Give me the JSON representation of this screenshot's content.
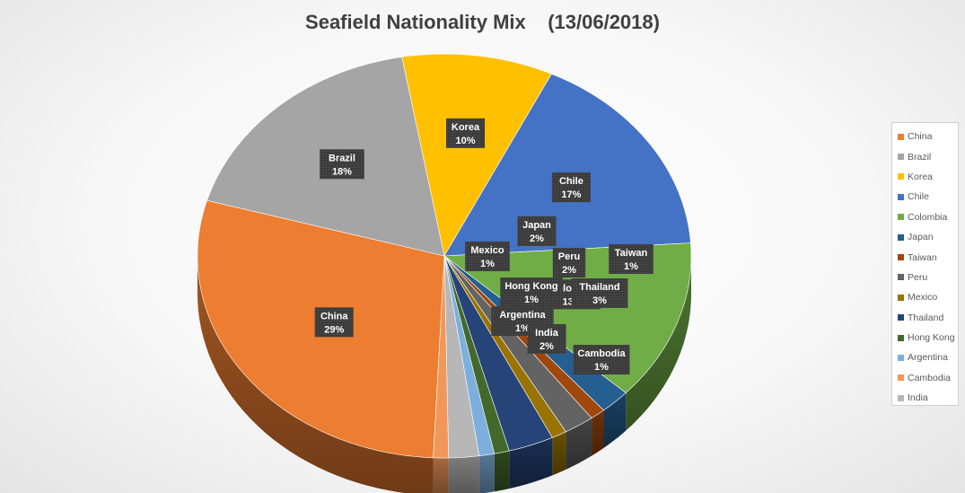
{
  "chart_data": {
    "type": "pie",
    "title": "Seafield Nationality Mix    (13/06/2018)",
    "legend_position": "right",
    "slices": [
      {
        "name": "China",
        "label": "China",
        "value": 29,
        "percent_label": "29%",
        "color": "#ED7D31"
      },
      {
        "name": "Brazil",
        "label": "Brazil",
        "value": 18,
        "percent_label": "18%",
        "color": "#A5A5A5"
      },
      {
        "name": "Korea",
        "label": "Korea",
        "value": 10,
        "percent_label": "10%",
        "color": "#FFC000"
      },
      {
        "name": "Chile",
        "label": "Chile",
        "value": 17,
        "percent_label": "17%",
        "color": "#4472C4"
      },
      {
        "name": "Colombia",
        "label": "Colombia",
        "value": 13,
        "percent_label": "13%",
        "color": "#70AD47"
      },
      {
        "name": "Japan",
        "label": "Japan",
        "value": 2,
        "percent_label": "2%",
        "color": "#255E91"
      },
      {
        "name": "Taiwan",
        "label": "Taiwan",
        "value": 1,
        "percent_label": "1%",
        "color": "#9E480E"
      },
      {
        "name": "Peru",
        "label": "Peru",
        "value": 2,
        "percent_label": "2%",
        "color": "#636363"
      },
      {
        "name": "Mexico",
        "label": "Mexico",
        "value": 1,
        "percent_label": "1%",
        "color": "#997300"
      },
      {
        "name": "Thailand",
        "label": "Thailand",
        "value": 3,
        "percent_label": "3%",
        "color": "#264478"
      },
      {
        "name": "Hong Kong",
        "label": "Hong Kong",
        "value": 1,
        "percent_label": "1%",
        "color": "#43682B"
      },
      {
        "name": "Argentina",
        "label": "Argentina",
        "value": 1,
        "percent_label": "1%",
        "color": "#7CAFDD"
      },
      {
        "name": "Cambodia",
        "label": "Cambodia",
        "value": 1,
        "percent_label": "1%",
        "color": "#F1975A"
      },
      {
        "name": "India",
        "label": "India",
        "value": 2,
        "percent_label": "2%",
        "color": "#B7B7B7"
      }
    ]
  }
}
